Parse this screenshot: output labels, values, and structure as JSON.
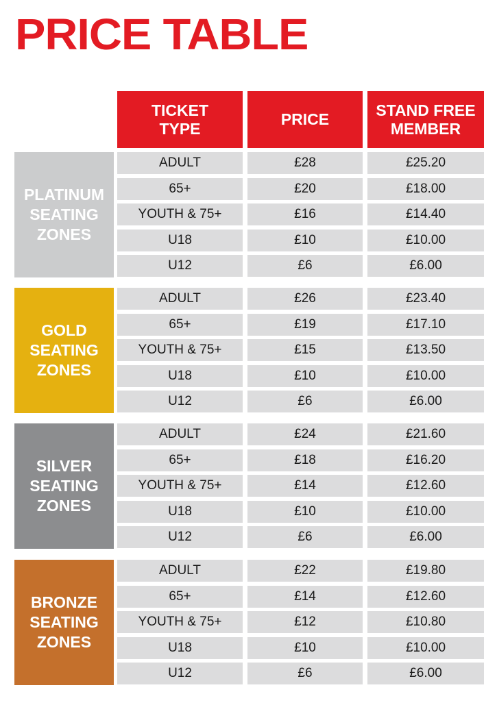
{
  "title": "PRICE TABLE",
  "headers": {
    "ticket_type": "TICKET\nTYPE",
    "price": "PRICE",
    "member": "STAND FREE\nMEMBER"
  },
  "zones": [
    {
      "label": "PLATINUM\nSEATING\nZONES",
      "color": "#cbcccd",
      "rows": [
        {
          "type": "ADULT",
          "price": "£28",
          "member": "£25.20"
        },
        {
          "type": "65+",
          "price": "£20",
          "member": "£18.00"
        },
        {
          "type": "YOUTH & 75+",
          "price": "£16",
          "member": "£14.40"
        },
        {
          "type": "U18",
          "price": "£10",
          "member": "£10.00"
        },
        {
          "type": "U12",
          "price": "£6",
          "member": "£6.00"
        }
      ]
    },
    {
      "label": "GOLD\nSEATING\nZONES",
      "color": "#e5b110",
      "rows": [
        {
          "type": "ADULT",
          "price": "£26",
          "member": "£23.40"
        },
        {
          "type": "65+",
          "price": "£19",
          "member": "£17.10"
        },
        {
          "type": "YOUTH & 75+",
          "price": "£15",
          "member": "£13.50"
        },
        {
          "type": "U18",
          "price": "£10",
          "member": "£10.00"
        },
        {
          "type": "U12",
          "price": "£6",
          "member": "£6.00"
        }
      ]
    },
    {
      "label": "SILVER\nSEATING\nZONES",
      "color": "#8c8d8f",
      "rows": [
        {
          "type": "ADULT",
          "price": "£24",
          "member": "£21.60"
        },
        {
          "type": "65+",
          "price": "£18",
          "member": "£16.20"
        },
        {
          "type": "YOUTH & 75+",
          "price": "£14",
          "member": "£12.60"
        },
        {
          "type": "U18",
          "price": "£10",
          "member": "£10.00"
        },
        {
          "type": "U12",
          "price": "£6",
          "member": "£6.00"
        }
      ]
    },
    {
      "label": "BRONZE\nSEATING\nZONES",
      "color": "#c4702c",
      "rows": [
        {
          "type": "ADULT",
          "price": "£22",
          "member": "£19.80"
        },
        {
          "type": "65+",
          "price": "£14",
          "member": "£12.60"
        },
        {
          "type": "YOUTH & 75+",
          "price": "£12",
          "member": "£10.80"
        },
        {
          "type": "U18",
          "price": "£10",
          "member": "£10.00"
        },
        {
          "type": "U12",
          "price": "£6",
          "member": "£6.00"
        }
      ]
    }
  ]
}
